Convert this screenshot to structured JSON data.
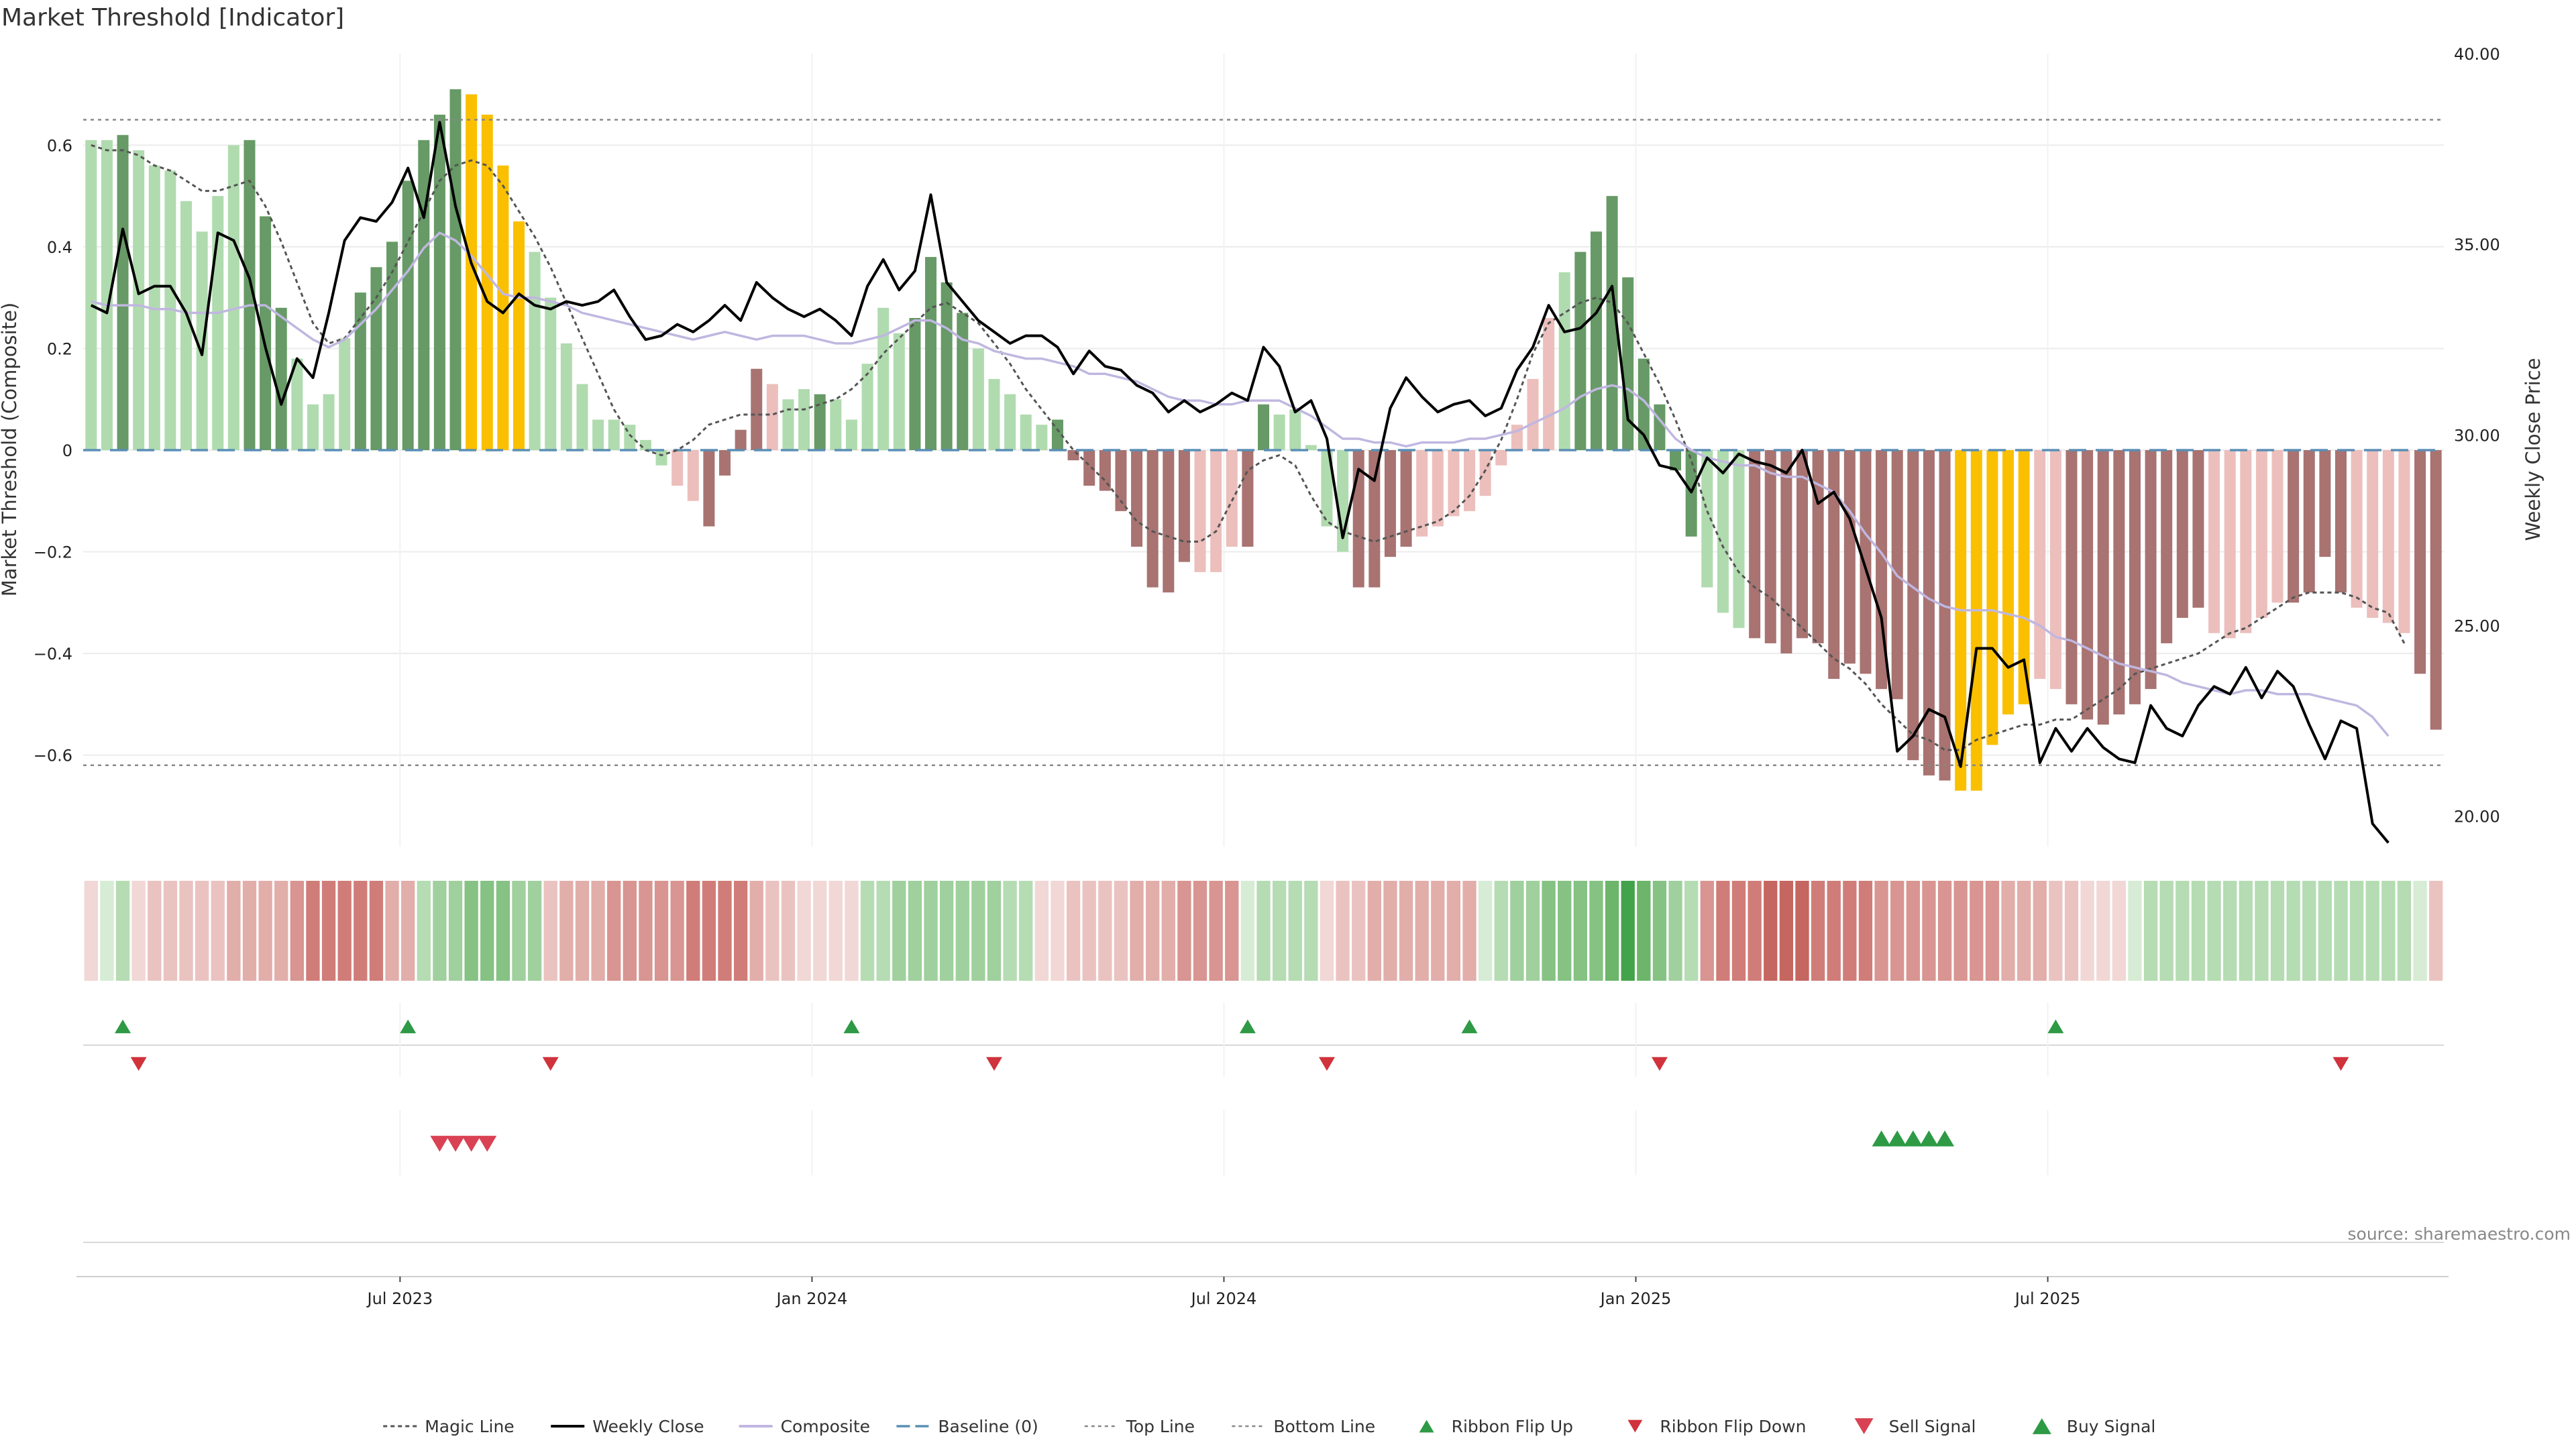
{
  "chart_data": {
    "type": "bar",
    "title": "Market Threshold [Indicator]",
    "ylabel_left": "Market Threshold (Composite)",
    "ylabel_right": "Weekly Close Price",
    "source": "source: sharemaestro.com",
    "ylim_left": [
      -0.78,
      0.78
    ],
    "ylim_right": [
      19.2,
      40.0
    ],
    "left_ticks": [
      0.6,
      0.4,
      0.2,
      0,
      -0.2,
      -0.4,
      -0.6
    ],
    "left_tick_labels": [
      "0.6",
      "0.4",
      "0.2",
      "0",
      "−0.2",
      "−0.4",
      "−0.6"
    ],
    "right_ticks": [
      40,
      35,
      30,
      25,
      20
    ],
    "right_tick_labels": [
      "40.00",
      "35.00",
      "30.00",
      "25.00",
      "20.00"
    ],
    "x_ticks": [
      {
        "week": 20,
        "label": "Jul 2023"
      },
      {
        "week": 46,
        "label": "Jan 2024"
      },
      {
        "week": 72,
        "label": "Jul 2024"
      },
      {
        "week": 98,
        "label": "Jan 2025"
      },
      {
        "week": 124,
        "label": "Jul 2025"
      }
    ],
    "top_line": 0.65,
    "bottom_line": -0.62,
    "grid": true,
    "legend_position": "bottom-center",
    "colors": {
      "light_green": "#b0dbaf",
      "dark_green": "#679a66",
      "light_red": "#ecbfbc",
      "dark_red": "#a87371",
      "yellow": "#fac000",
      "weekly_close": "#000000",
      "composite": "#c0b7e0",
      "magic_line": "#555555",
      "baseline": "#5b8fb5",
      "flip_up": "#2e9a45",
      "flip_down": "#d0333b",
      "sell": "#d94253",
      "buy": "#2e9a45"
    },
    "bar_color_codes": "LLDLLLLLLLDDDLLLLDDDDDDDYYYYLLLLLLLLLrrRRRRrLLDLLLLLDDDDLLLLLDRRRRRRRRrrrRDLLLLLRRRRrrrrrrrrrLDDDDDDDDLLLRRRRRRRRRRRRRYYYYYrrRRRRRRRRRrrrrrRRRRrrrrRRRrR",
    "composite_values": [
      0.61,
      0.61,
      0.62,
      0.59,
      0.56,
      0.55,
      0.49,
      0.43,
      0.5,
      0.6,
      0.61,
      0.46,
      0.28,
      0.18,
      0.09,
      0.11,
      0.22,
      0.31,
      0.36,
      0.41,
      0.53,
      0.61,
      0.66,
      0.71,
      0.7,
      0.66,
      0.56,
      0.45,
      0.39,
      0.3,
      0.21,
      0.13,
      0.06,
      0.06,
      0.05,
      0.02,
      -0.03,
      -0.07,
      -0.1,
      -0.15,
      -0.05,
      0.04,
      0.16,
      0.13,
      0.1,
      0.12,
      0.11,
      0.1,
      0.06,
      0.17,
      0.28,
      0.23,
      0.26,
      0.38,
      0.33,
      0.27,
      0.2,
      0.14,
      0.11,
      0.07,
      0.05,
      0.06,
      -0.02,
      -0.07,
      -0.08,
      -0.12,
      -0.19,
      -0.27,
      -0.28,
      -0.22,
      -0.24,
      -0.24,
      -0.19,
      -0.19,
      0.09,
      0.07,
      0.08,
      0.01,
      -0.15,
      -0.2,
      -0.27,
      -0.27,
      -0.21,
      -0.19,
      -0.17,
      -0.15,
      -0.13,
      -0.12,
      -0.09,
      -0.03,
      0.05,
      0.14,
      0.26,
      0.35,
      0.39,
      0.43,
      0.5,
      0.34,
      0.18,
      0.09,
      -0.04,
      -0.17,
      -0.27,
      -0.32,
      -0.35,
      -0.37,
      -0.38,
      -0.4,
      -0.37,
      -0.38,
      -0.45,
      -0.42,
      -0.44,
      -0.47,
      -0.49,
      -0.61,
      -0.64,
      -0.65,
      -0.67,
      -0.67,
      -0.58,
      -0.52,
      -0.5,
      -0.45,
      -0.47,
      -0.5,
      -0.53,
      -0.54,
      -0.52,
      -0.5,
      -0.47,
      -0.38,
      -0.33,
      -0.31,
      -0.36,
      -0.37,
      -0.36,
      -0.33,
      -0.3,
      -0.3,
      -0.28,
      -0.21,
      -0.28,
      -0.31,
      -0.33,
      -0.34,
      -0.36,
      -0.44,
      -0.55
    ],
    "weekly_close": [
      33.4,
      33.2,
      35.4,
      33.7,
      33.9,
      33.9,
      33.2,
      32.1,
      35.3,
      35.1,
      34.1,
      32.3,
      30.8,
      32.0,
      31.5,
      33.2,
      35.1,
      35.7,
      35.6,
      36.1,
      37.0,
      35.7,
      38.2,
      36.0,
      34.5,
      33.5,
      33.2,
      33.7,
      33.4,
      33.3,
      33.5,
      33.4,
      33.5,
      33.8,
      33.1,
      32.5,
      32.6,
      32.9,
      32.7,
      33.0,
      33.4,
      33.0,
      34.0,
      33.6,
      33.3,
      33.1,
      33.3,
      33.0,
      32.6,
      33.9,
      34.6,
      33.8,
      34.3,
      36.3,
      34.0,
      33.5,
      33.0,
      32.7,
      32.4,
      32.6,
      32.6,
      32.3,
      31.6,
      32.2,
      31.8,
      31.7,
      31.3,
      31.1,
      30.6,
      30.9,
      30.6,
      30.8,
      31.1,
      30.9,
      32.3,
      31.8,
      30.6,
      30.9,
      29.9,
      27.3,
      29.1,
      28.8,
      30.7,
      31.5,
      31.0,
      30.6,
      30.8,
      30.9,
      30.5,
      30.7,
      31.7,
      32.3,
      33.4,
      32.7,
      32.8,
      33.2,
      33.9,
      30.4,
      30.0,
      29.2,
      29.1,
      28.5,
      29.4,
      29.0,
      29.5,
      29.3,
      29.2,
      29.0,
      29.6,
      28.2,
      28.5,
      27.8,
      26.5,
      25.2,
      21.7,
      22.1,
      22.8,
      22.6,
      21.3,
      24.4,
      24.4,
      23.9,
      24.1,
      21.4,
      22.3,
      21.7,
      22.3,
      21.8,
      21.5,
      21.4,
      22.9,
      22.3,
      22.1,
      22.9,
      23.4,
      23.2,
      23.9,
      23.1,
      23.8,
      23.4,
      22.4,
      21.5,
      22.5,
      22.3,
      19.8,
      19.3
    ],
    "composite_line": [
      33.5,
      33.4,
      33.4,
      33.4,
      33.3,
      33.3,
      33.2,
      33.2,
      33.2,
      33.3,
      33.4,
      33.4,
      33.1,
      32.8,
      32.5,
      32.3,
      32.5,
      32.9,
      33.3,
      33.8,
      34.3,
      34.9,
      35.3,
      35.1,
      34.7,
      34.2,
      33.7,
      33.6,
      33.6,
      33.5,
      33.4,
      33.2,
      33.1,
      33.0,
      32.9,
      32.8,
      32.7,
      32.6,
      32.5,
      32.6,
      32.7,
      32.6,
      32.5,
      32.6,
      32.6,
      32.6,
      32.5,
      32.4,
      32.4,
      32.5,
      32.6,
      32.8,
      33.0,
      33.0,
      32.8,
      32.5,
      32.4,
      32.2,
      32.1,
      32.0,
      32.0,
      31.9,
      31.8,
      31.6,
      31.6,
      31.5,
      31.4,
      31.2,
      31.0,
      30.9,
      30.9,
      30.8,
      30.8,
      30.9,
      30.9,
      30.9,
      30.7,
      30.5,
      30.2,
      29.9,
      29.9,
      29.8,
      29.8,
      29.7,
      29.8,
      29.8,
      29.8,
      29.9,
      29.9,
      30.0,
      30.1,
      30.3,
      30.5,
      30.7,
      31.0,
      31.2,
      31.3,
      31.2,
      30.9,
      30.4,
      29.9,
      29.6,
      29.4,
      29.3,
      29.2,
      29.2,
      29.0,
      28.9,
      28.9,
      28.7,
      28.5,
      28.0,
      27.4,
      26.9,
      26.3,
      26.0,
      25.7,
      25.5,
      25.4,
      25.4,
      25.4,
      25.3,
      25.2,
      25.0,
      24.7,
      24.6,
      24.4,
      24.2,
      24.0,
      23.9,
      23.8,
      23.7,
      23.5,
      23.4,
      23.3,
      23.2,
      23.3,
      23.3,
      23.2,
      23.2,
      23.2,
      23.1,
      23.0,
      22.9,
      22.6,
      22.1
    ],
    "magic_line": [
      0.6,
      0.59,
      0.59,
      0.58,
      0.56,
      0.55,
      0.53,
      0.51,
      0.51,
      0.52,
      0.53,
      0.48,
      0.41,
      0.33,
      0.25,
      0.21,
      0.22,
      0.26,
      0.3,
      0.35,
      0.41,
      0.47,
      0.53,
      0.56,
      0.57,
      0.56,
      0.52,
      0.47,
      0.42,
      0.36,
      0.29,
      0.22,
      0.15,
      0.08,
      0.03,
      -0.0,
      -0.01,
      -0.0,
      0.02,
      0.05,
      0.06,
      0.07,
      0.07,
      0.07,
      0.08,
      0.08,
      0.09,
      0.1,
      0.12,
      0.15,
      0.19,
      0.22,
      0.25,
      0.28,
      0.29,
      0.27,
      0.25,
      0.21,
      0.17,
      0.12,
      0.08,
      0.04,
      0.0,
      -0.03,
      -0.06,
      -0.1,
      -0.14,
      -0.16,
      -0.17,
      -0.18,
      -0.18,
      -0.16,
      -0.1,
      -0.04,
      -0.02,
      -0.01,
      -0.03,
      -0.09,
      -0.14,
      -0.16,
      -0.17,
      -0.18,
      -0.17,
      -0.16,
      -0.15,
      -0.14,
      -0.12,
      -0.09,
      -0.04,
      0.02,
      0.1,
      0.19,
      0.25,
      0.27,
      0.29,
      0.3,
      0.29,
      0.25,
      0.19,
      0.13,
      0.06,
      -0.02,
      -0.12,
      -0.19,
      -0.24,
      -0.27,
      -0.29,
      -0.32,
      -0.35,
      -0.38,
      -0.41,
      -0.43,
      -0.46,
      -0.5,
      -0.53,
      -0.56,
      -0.57,
      -0.59,
      -0.59,
      -0.57,
      -0.56,
      -0.55,
      -0.54,
      -0.54,
      -0.53,
      -0.53,
      -0.51,
      -0.49,
      -0.47,
      -0.44,
      -0.43,
      -0.42,
      -0.41,
      -0.4,
      -0.38,
      -0.36,
      -0.35,
      -0.33,
      -0.31,
      -0.29,
      -0.28,
      -0.28,
      -0.28,
      -0.29,
      -0.31,
      -0.32,
      -0.38
    ],
    "ribbon_levels": [
      -1,
      1,
      2,
      -1,
      -2,
      -2,
      -2,
      -2,
      -2,
      -3,
      -3,
      -3,
      -3,
      -4,
      -5,
      -5,
      -5,
      -5,
      -5,
      -3,
      -3,
      2,
      3,
      3,
      4,
      4,
      4,
      3,
      3,
      -2,
      -3,
      -3,
      -3,
      -4,
      -4,
      -4,
      -4,
      -4,
      -5,
      -5,
      -5,
      -5,
      -3,
      -2,
      -2,
      -1,
      -1,
      -1,
      -1,
      2,
      2,
      3,
      3,
      3,
      3,
      3,
      3,
      3,
      2,
      2,
      -1,
      -1,
      -2,
      -2,
      -2,
      -2,
      -3,
      -3,
      -3,
      -4,
      -4,
      -4,
      -4,
      1,
      2,
      2,
      2,
      2,
      -1,
      -2,
      -2,
      -3,
      -3,
      -3,
      -3,
      -3,
      -3,
      -3,
      1,
      2,
      3,
      3,
      4,
      4,
      4,
      4,
      5,
      6,
      5,
      4,
      3,
      2,
      -4,
      -5,
      -5,
      -5,
      -6,
      -6,
      -6,
      -5,
      -5,
      -5,
      -5,
      -4,
      -4,
      -4,
      -4,
      -4,
      -4,
      -4,
      -4,
      -3,
      -3,
      -3,
      -2,
      -2,
      -1,
      -1,
      -1,
      1,
      2,
      2,
      2,
      2,
      2,
      2,
      2,
      2,
      2,
      2,
      2,
      2,
      2,
      2,
      2,
      2,
      2,
      1,
      -2
    ],
    "ribbon_flip_up_weeks": [
      2,
      20,
      48,
      73,
      87,
      124
    ],
    "ribbon_flip_down_weeks": [
      3,
      29,
      57,
      78,
      99,
      142
    ],
    "sell_signal_weeks": [
      22,
      23,
      24,
      25
    ],
    "buy_signal_weeks": [
      113,
      114,
      115,
      116,
      117
    ],
    "legend": [
      {
        "key": "magic",
        "label": "Magic Line"
      },
      {
        "key": "close",
        "label": "Weekly Close"
      },
      {
        "key": "composite",
        "label": "Composite"
      },
      {
        "key": "baseline",
        "label": "Baseline (0)"
      },
      {
        "key": "top",
        "label": "Top Line"
      },
      {
        "key": "bottom",
        "label": "Bottom Line"
      },
      {
        "key": "flipup",
        "label": "Ribbon Flip Up"
      },
      {
        "key": "flipdown",
        "label": "Ribbon Flip Down"
      },
      {
        "key": "sell",
        "label": "Sell Signal"
      },
      {
        "key": "buy",
        "label": "Buy Signal"
      }
    ]
  }
}
